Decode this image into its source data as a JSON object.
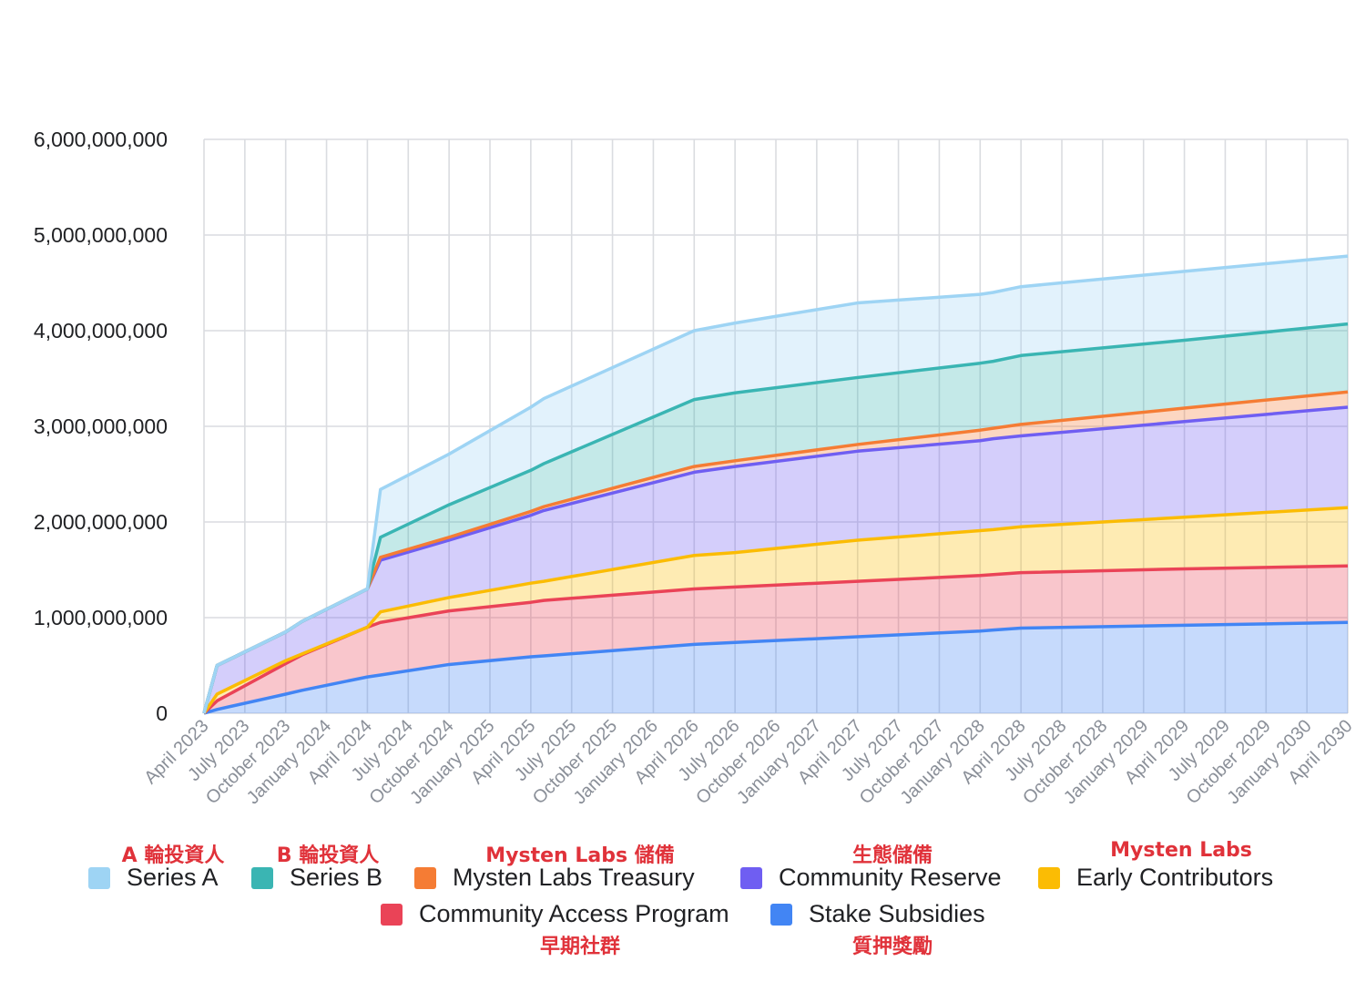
{
  "chart_data": {
    "type": "area",
    "stacked": true,
    "categories": [
      "April 2023",
      "July 2023",
      "October 2023",
      "January 2024",
      "April 2024",
      "July 2024",
      "October 2024",
      "January 2025",
      "April 2025",
      "July 2025",
      "October 2025",
      "January 2026",
      "April 2026",
      "July 2026",
      "October 2026",
      "January 2027",
      "April 2027",
      "July 2027",
      "October 2027",
      "January 2028",
      "April 2028",
      "July 2028",
      "October 2028",
      "January 2029",
      "April 2029",
      "July 2029",
      "October 2029",
      "January 2030",
      "April 2030"
    ],
    "x": [
      0,
      0.25,
      0.5,
      0.75,
      1,
      1.25,
      1.5,
      1.75,
      2,
      2.25,
      2.5,
      2.75,
      3,
      3.25,
      3.5,
      3.75,
      4,
      4.25,
      4.5,
      4.75,
      5,
      5.25,
      5.5,
      5.75,
      6,
      6.25,
      6.5,
      6.75,
      7
    ],
    "ylim": [
      0,
      6000000000
    ],
    "yticks": [
      0,
      1000000000,
      2000000000,
      3000000000,
      4000000000,
      5000000000,
      6000000000
    ],
    "ytick_labels": [
      "0",
      "1,000,000,000",
      "2,000,000,000",
      "3,000,000,000",
      "4,000,000,000",
      "5,000,000,000",
      "6,000,000,000"
    ],
    "grid": true,
    "legend_position": "bottom",
    "series_points_x": [
      0,
      0.08,
      0.5,
      0.6,
      1,
      1.08,
      1.5,
      2,
      2.08,
      3,
      3.25,
      4,
      4.75,
      4.83,
      5,
      6,
      7
    ],
    "series": [
      {
        "name": "Stake Subsidies",
        "label_zh": "質押獎勵",
        "color": "#4285f4",
        "cumulative": [
          0,
          40000000,
          200000000,
          240000000,
          380000000,
          400000000,
          510000000,
          590000000,
          600000000,
          720000000,
          740000000,
          800000000,
          860000000,
          870000000,
          890000000,
          920000000,
          950000000
        ]
      },
      {
        "name": "Community Access Program",
        "label_zh": "早期社群",
        "color": "#ea4357",
        "cumulative": [
          0,
          130000000,
          520000000,
          610000000,
          900000000,
          950000000,
          1070000000,
          1160000000,
          1180000000,
          1300000000,
          1320000000,
          1380000000,
          1440000000,
          1450000000,
          1470000000,
          1510000000,
          1540000000
        ]
      },
      {
        "name": "Early Contributors",
        "label_zh": "Mysten Labs",
        "color": "#fbbc04",
        "cumulative": [
          0,
          200000000,
          550000000,
          620000000,
          900000000,
          1060000000,
          1210000000,
          1360000000,
          1380000000,
          1650000000,
          1680000000,
          1810000000,
          1910000000,
          1920000000,
          1950000000,
          2050000000,
          2150000000
        ]
      },
      {
        "name": "Community Reserve",
        "label_zh": "生態儲備",
        "color": "#6f5ef2",
        "cumulative": [
          0,
          500000000,
          850000000,
          960000000,
          1300000000,
          1600000000,
          1810000000,
          2070000000,
          2120000000,
          2520000000,
          2580000000,
          2740000000,
          2850000000,
          2870000000,
          2900000000,
          3050000000,
          3200000000
        ]
      },
      {
        "name": "Mysten Labs Treasury",
        "label_zh": "Mysten Labs 儲備",
        "color": "#f57c34",
        "cumulative": [
          0,
          500000000,
          850000000,
          960000000,
          1300000000,
          1630000000,
          1840000000,
          2110000000,
          2160000000,
          2580000000,
          2640000000,
          2810000000,
          2960000000,
          2980000000,
          3020000000,
          3190000000,
          3360000000
        ]
      },
      {
        "name": "Series B",
        "label_zh": "B 輪投資人",
        "color": "#3ab5b3",
        "cumulative": [
          0,
          500000000,
          850000000,
          960000000,
          1300000000,
          1840000000,
          2180000000,
          2540000000,
          2610000000,
          3280000000,
          3350000000,
          3510000000,
          3660000000,
          3680000000,
          3740000000,
          3900000000,
          4070000000
        ]
      },
      {
        "name": "Series A",
        "label_zh": "A 輪投資人",
        "color": "#9ed4f4",
        "cumulative": [
          0,
          500000000,
          850000000,
          960000000,
          1300000000,
          2340000000,
          2710000000,
          3200000000,
          3290000000,
          4000000000,
          4080000000,
          4290000000,
          4380000000,
          4400000000,
          4460000000,
          4620000000,
          4780000000
        ]
      }
    ]
  },
  "legend": {
    "row1": [
      {
        "label": "Series A",
        "color": "#9ed4f4"
      },
      {
        "label": "Series B",
        "color": "#3ab5b3"
      },
      {
        "label": "Mysten Labs Treasury",
        "color": "#f57c34"
      },
      {
        "label": "Community Reserve",
        "color": "#6f5ef2"
      },
      {
        "label": "Early Contributors",
        "color": "#fbbc04"
      }
    ],
    "row2": [
      {
        "label": "Community Access Program",
        "color": "#ea4357"
      },
      {
        "label": "Stake Subsidies",
        "color": "#4285f4"
      }
    ]
  },
  "annotations": {
    "series_a": "A 輪投資人",
    "series_b": "B 輪投資人",
    "treasury": "Mysten Labs 儲備",
    "community_reserve": "生態儲備",
    "early_contributors": "Mysten Labs",
    "community_access": "早期社群",
    "stake_subsidies": "質押獎勵"
  }
}
